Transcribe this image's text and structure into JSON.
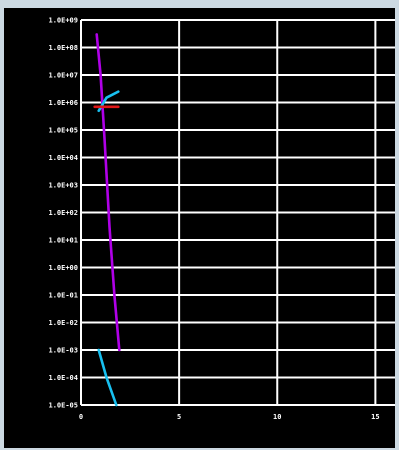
{
  "colors": {
    "background": "#000000",
    "grid": "#ffffff",
    "tick_label": "#ffffff",
    "frame": "#ccd9e2"
  },
  "chart_data": {
    "type": "line",
    "title": "",
    "xlabel": "",
    "ylabel": "",
    "grid": true,
    "legend": "none",
    "y_scale": "log",
    "xlim": [
      0,
      16
    ],
    "ylim_exponent": [
      -5,
      9
    ],
    "x_ticks": [
      {
        "value": 0,
        "label": "0"
      },
      {
        "value": 5,
        "label": "5"
      },
      {
        "value": 10,
        "label": "10"
      },
      {
        "value": 15,
        "label": "15"
      }
    ],
    "y_ticks": [
      {
        "exp": 9,
        "label": "1.0E+09"
      },
      {
        "exp": 8,
        "label": "1.0E+08"
      },
      {
        "exp": 7,
        "label": "1.0E+07"
      },
      {
        "exp": 6,
        "label": "1.0E+06"
      },
      {
        "exp": 5,
        "label": "1.0E+05"
      },
      {
        "exp": 4,
        "label": "1.0E+04"
      },
      {
        "exp": 3,
        "label": "1.0E+03"
      },
      {
        "exp": 2,
        "label": "1.0E+02"
      },
      {
        "exp": 1,
        "label": "1.0E+01"
      },
      {
        "exp": 0,
        "label": "1.0E+00"
      },
      {
        "exp": -1,
        "label": "1.0E-01"
      },
      {
        "exp": -2,
        "label": "1.0E-02"
      },
      {
        "exp": -3,
        "label": "1.0E-03"
      },
      {
        "exp": -4,
        "label": "1.0E-04"
      },
      {
        "exp": -5,
        "label": "1.0E-05"
      }
    ],
    "series": [
      {
        "color": "#b000e8",
        "points": [
          {
            "x": 0.8,
            "y": 300000000.0
          },
          {
            "x": 1.0,
            "y": 10000000.0
          },
          {
            "x": 1.2,
            "y": 50000.0
          },
          {
            "x": 1.45,
            "y": 30.0
          },
          {
            "x": 1.7,
            "y": 0.1
          },
          {
            "x": 1.95,
            "y": 0.001
          }
        ]
      },
      {
        "color": "#18c0f0",
        "points": [
          {
            "x": 0.9,
            "y": 0.001
          },
          {
            "x": 1.3,
            "y": 0.0001
          },
          {
            "x": 1.8,
            "y": 1e-05
          }
        ]
      },
      {
        "color": "#18c0f0",
        "points": [
          {
            "x": 0.9,
            "y": 500000.0
          },
          {
            "x": 1.3,
            "y": 1500000.0
          },
          {
            "x": 1.9,
            "y": 2500000.0
          }
        ]
      },
      {
        "color": "#e01818",
        "points": [
          {
            "x": 0.7,
            "y": 700000.0
          },
          {
            "x": 1.9,
            "y": 700000.0
          }
        ]
      }
    ]
  }
}
